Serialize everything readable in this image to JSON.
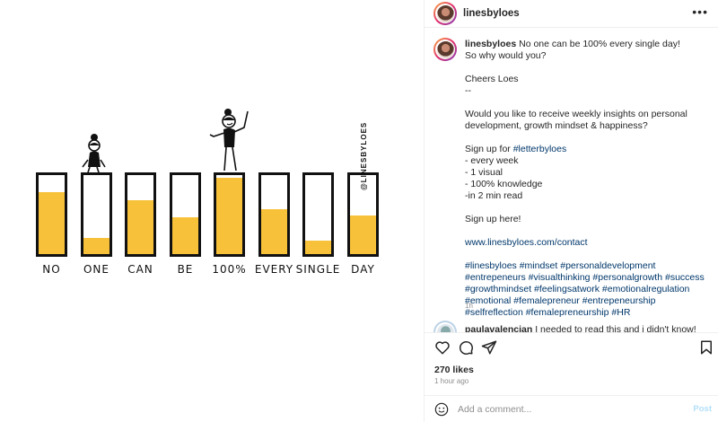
{
  "illustration": {
    "fill_color": "#f7c23a",
    "watermark": "@LINESBYLOES",
    "bars": [
      {
        "label": "NO",
        "fill_pct": 78
      },
      {
        "label": "ONE",
        "fill_pct": 21
      },
      {
        "label": "CAN",
        "fill_pct": 68
      },
      {
        "label": "BE",
        "fill_pct": 47
      },
      {
        "label": "100%",
        "fill_pct": 97
      },
      {
        "label": "EVERY",
        "fill_pct": 57
      },
      {
        "label": "SINGLE",
        "fill_pct": 17
      },
      {
        "label": "DAY",
        "fill_pct": 49
      }
    ]
  },
  "header": {
    "username": "linesbyloes",
    "more_icon": "more-horizontal-icon"
  },
  "caption": {
    "username": "linesbyloes",
    "first_line": "No one can be 100% every single day!",
    "lines": [
      "So why would you?",
      "",
      "Cheers Loes",
      "--",
      "",
      "Would you like to receive weekly insights on personal development, growth mindset & happiness?",
      "",
      "Sign up for #letterbyloes",
      "- every week",
      "- 1 visual",
      "- 100% knowledge",
      "-in 2 min read",
      "",
      "Sign up here!",
      "",
      "www.linesbyloes.com/contact",
      "",
      "#linesbyloes #mindset #personaldevelopment #entrepeneurs #visualthinking #personalgrowth #success #growthmindset #feelingsatwork #emotionalregulation #emotional #femalepreneur #entrepeneurship #selfreflection #femalepreneurship #HR"
    ],
    "time": "1h"
  },
  "comment": {
    "username": "paulavalencian",
    "text": "I needed to read this and i didn't know!"
  },
  "actions": {
    "like_icon": "heart-icon",
    "comment_icon": "comment-icon",
    "share_icon": "send-icon",
    "save_icon": "bookmark-icon"
  },
  "likes": "270 likes",
  "time_ago": "1 hour ago",
  "add_comment": {
    "placeholder": "Add a comment...",
    "post_label": "Post",
    "emoji_icon": "emoji-icon"
  },
  "colors": {
    "link": "#00376b",
    "post_disabled": "#b2dffc",
    "muted": "#8e8e8e"
  }
}
